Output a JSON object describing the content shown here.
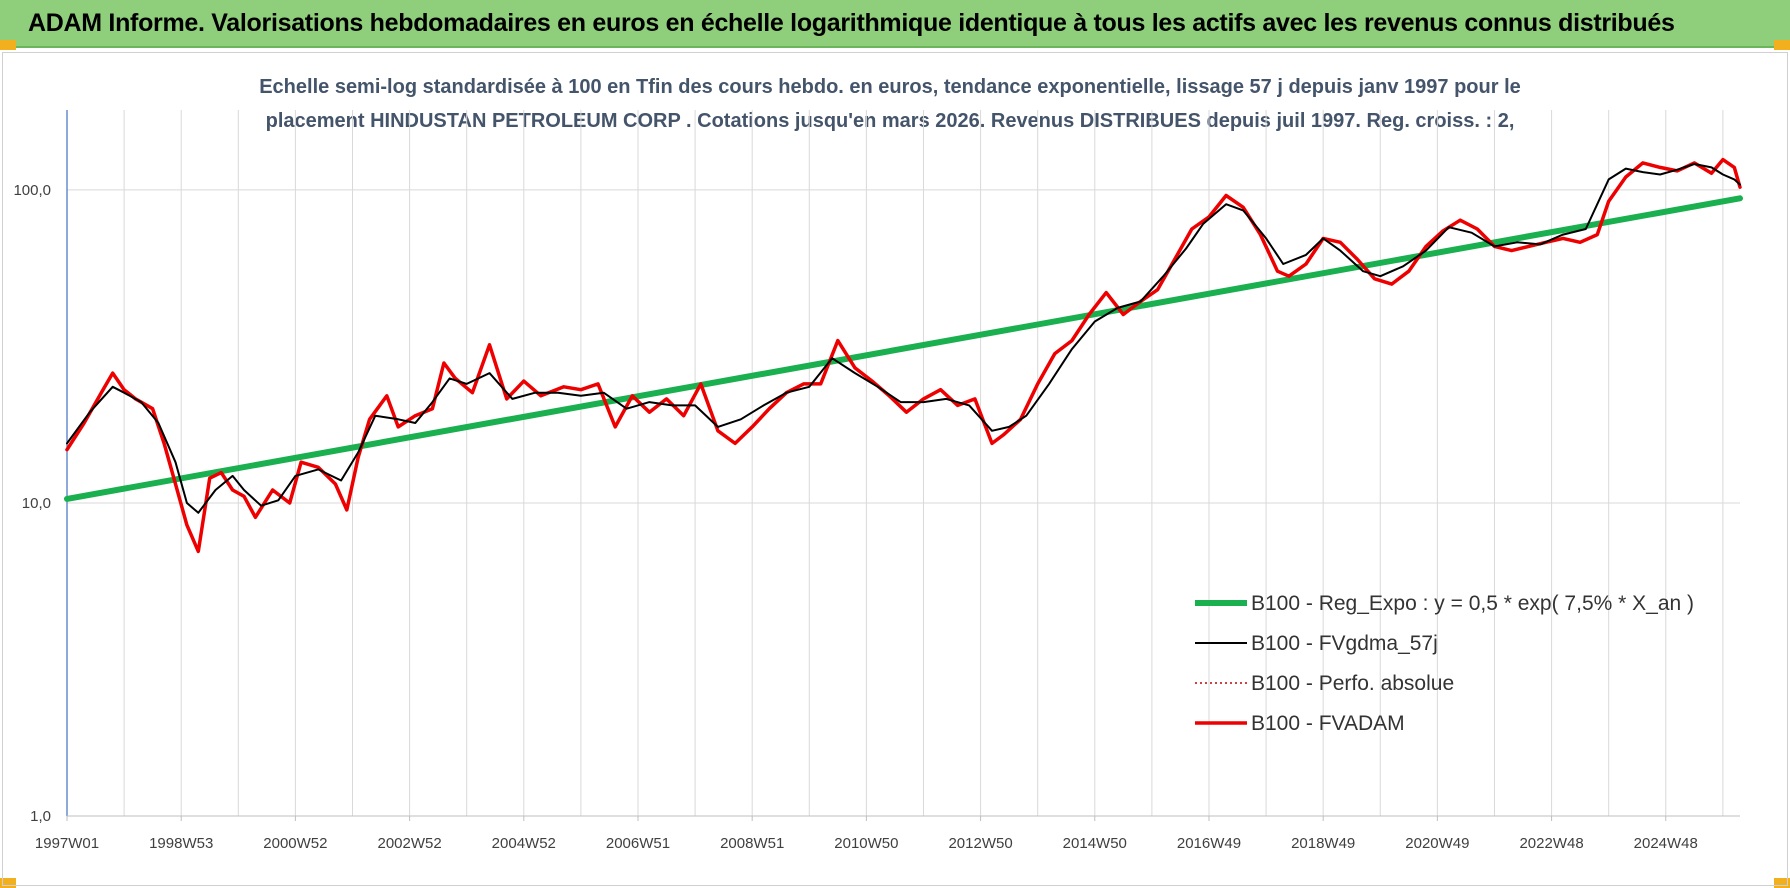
{
  "header": {
    "title": "ADAM Informe. Valorisations hebdomadaires en euros en échelle logarithmique identique à tous les actifs avec les revenus connus distribués"
  },
  "chart_data": {
    "type": "line",
    "title_lines": [
      "Echelle semi-log standardisée à 100 en Tfin des cours hebdo. en euros, tendance exponentielle, lissage 57 j depuis janv 1997 pour le",
      "placement HINDUSTAN PETROLEUM CORP . Cotations jusqu'en mars 2026. Revenus DISTRIBUES depuis juil 1997. Reg. croiss. : 2,"
    ],
    "y_scale": "log",
    "ylim": [
      1,
      180
    ],
    "xlim": [
      1997.0,
      2026.3
    ],
    "y_ticks": [
      {
        "value": 1,
        "label": "1,0"
      },
      {
        "value": 10,
        "label": "10,0"
      },
      {
        "value": 100,
        "label": "100,0"
      }
    ],
    "x_ticks": [
      {
        "value": 1997.0,
        "label": "1997W01"
      },
      {
        "value": 1999.0,
        "label": "1998W53"
      },
      {
        "value": 2001.0,
        "label": "2000W52"
      },
      {
        "value": 2003.0,
        "label": "2002W52"
      },
      {
        "value": 2005.0,
        "label": "2004W52"
      },
      {
        "value": 2007.0,
        "label": "2006W51"
      },
      {
        "value": 2009.0,
        "label": "2008W51"
      },
      {
        "value": 2011.0,
        "label": "2010W50"
      },
      {
        "value": 2013.0,
        "label": "2012W50"
      },
      {
        "value": 2015.0,
        "label": "2014W50"
      },
      {
        "value": 2017.0,
        "label": "2016W49"
      },
      {
        "value": 2019.0,
        "label": "2018W49"
      },
      {
        "value": 2021.0,
        "label": "2020W49"
      },
      {
        "value": 2023.0,
        "label": "2022W48"
      },
      {
        "value": 2025.0,
        "label": "2024W48"
      }
    ],
    "grid": "vertical and horizontal",
    "legend_position": "bottom-right",
    "colors": {
      "regression": "#1aaf4f",
      "smoothed": "#000000",
      "perf_absolue": "#c00000",
      "fvadam": "#ee0000",
      "axis": "#4472c4",
      "grid": "#d9d9d9"
    },
    "series": [
      {
        "name": "B100 - Reg_Expo : y = 0,5 * exp( 7,5% * X_an )",
        "style": "thick-solid",
        "x": [
          1997.0,
          2026.3
        ],
        "y": [
          10.3,
          94
        ]
      },
      {
        "name": "B100 - FVgdma_57j",
        "style": "thin-solid",
        "x": [
          1997.0,
          1997.4,
          1997.8,
          1998.0,
          1998.3,
          1998.6,
          1998.9,
          1999.1,
          1999.3,
          1999.6,
          1999.9,
          2000.1,
          2000.4,
          2000.7,
          2001.0,
          2001.4,
          2001.8,
          2002.1,
          2002.4,
          2002.8,
          2003.1,
          2003.4,
          2003.7,
          2004.0,
          2004.4,
          2004.8,
          2005.2,
          2005.6,
          2006.0,
          2006.4,
          2006.8,
          2007.2,
          2007.6,
          2008.0,
          2008.4,
          2008.8,
          2009.2,
          2009.6,
          2010.0,
          2010.4,
          2010.8,
          2011.2,
          2011.6,
          2012.0,
          2012.4,
          2012.8,
          2013.2,
          2013.5,
          2013.8,
          2014.2,
          2014.6,
          2015.0,
          2015.4,
          2015.8,
          2016.2,
          2016.6,
          2016.9,
          2017.3,
          2017.6,
          2018.0,
          2018.3,
          2018.7,
          2019.0,
          2019.3,
          2019.7,
          2020.0,
          2020.4,
          2020.8,
          2021.2,
          2021.6,
          2022.0,
          2022.4,
          2022.8,
          2023.2,
          2023.6,
          2024.0,
          2024.3,
          2024.6,
          2024.9,
          2025.2,
          2025.5,
          2025.8,
          2026.0,
          2026.2,
          2026.3
        ],
        "y": [
          15.5,
          19.5,
          23.5,
          22.5,
          21,
          18,
          13.5,
          10,
          9.3,
          11,
          12.2,
          11,
          9.8,
          10.2,
          12.2,
          12.8,
          11.8,
          14.5,
          19,
          18.5,
          18,
          21,
          25,
          24,
          26,
          21.5,
          22.5,
          22.5,
          22,
          22.5,
          20,
          21,
          20.5,
          20.5,
          17.5,
          18.5,
          20.5,
          22.5,
          23.5,
          29,
          26,
          23.5,
          21,
          21,
          21.5,
          20.5,
          17,
          17.5,
          19,
          24,
          31,
          38,
          42,
          44,
          53,
          65,
          78,
          90,
          86,
          70,
          58,
          62,
          70,
          64,
          55,
          53,
          57,
          64,
          76,
          73,
          66,
          68,
          67,
          72,
          75,
          108,
          117,
          114,
          112,
          116,
          121,
          118,
          112,
          108,
          104
        ]
      },
      {
        "name": "B100 - Perfo. absolue",
        "style": "dotted",
        "x": [
          1997.0,
          2026.3
        ],
        "y": [
          15.5,
          104
        ]
      },
      {
        "name": "B100 - FVADAM",
        "style": "thick-solid",
        "x": [
          1997.0,
          1997.3,
          1997.6,
          1997.8,
          1998.0,
          1998.2,
          1998.5,
          1998.7,
          1998.9,
          1999.1,
          1999.3,
          1999.5,
          1999.7,
          1999.9,
          2000.1,
          2000.3,
          2000.6,
          2000.9,
          2001.1,
          2001.4,
          2001.7,
          2001.9,
          2002.1,
          2002.3,
          2002.6,
          2002.8,
          2003.1,
          2003.4,
          2003.6,
          2003.8,
          2004.1,
          2004.4,
          2004.7,
          2005.0,
          2005.3,
          2005.7,
          2006.0,
          2006.3,
          2006.6,
          2006.9,
          2007.2,
          2007.5,
          2007.8,
          2008.1,
          2008.4,
          2008.7,
          2009.0,
          2009.3,
          2009.6,
          2009.9,
          2010.2,
          2010.5,
          2010.8,
          2011.1,
          2011.4,
          2011.7,
          2012.0,
          2012.3,
          2012.6,
          2012.9,
          2013.2,
          2013.4,
          2013.7,
          2014.0,
          2014.3,
          2014.6,
          2014.9,
          2015.2,
          2015.5,
          2015.8,
          2016.1,
          2016.4,
          2016.7,
          2017.0,
          2017.3,
          2017.6,
          2017.9,
          2018.2,
          2018.4,
          2018.7,
          2019.0,
          2019.3,
          2019.6,
          2019.9,
          2020.2,
          2020.5,
          2020.8,
          2021.1,
          2021.4,
          2021.7,
          2022.0,
          2022.3,
          2022.6,
          2022.9,
          2023.2,
          2023.5,
          2023.8,
          2024.0,
          2024.3,
          2024.6,
          2024.9,
          2025.2,
          2025.5,
          2025.8,
          2026.0,
          2026.2,
          2026.3
        ],
        "y": [
          14.8,
          18,
          22.5,
          26,
          23,
          21.5,
          20,
          15.5,
          11.5,
          8.5,
          7,
          12,
          12.5,
          11,
          10.5,
          9,
          11,
          10,
          13.5,
          13,
          11.5,
          9.5,
          14,
          18.5,
          22,
          17.5,
          19,
          20,
          28,
          25,
          22.5,
          32,
          21.5,
          24.5,
          22,
          23.5,
          23,
          24,
          17.5,
          22,
          19.5,
          21.5,
          19,
          24,
          17,
          15.5,
          17.5,
          20,
          22.5,
          24,
          24,
          33,
          27,
          24.5,
          22,
          19.5,
          21.5,
          23,
          20.5,
          21.5,
          15.5,
          16.5,
          18.5,
          24,
          30,
          33,
          40,
          47,
          40,
          44,
          48,
          60,
          75,
          82,
          96,
          88,
          72,
          55,
          53,
          58,
          70,
          68,
          60,
          52,
          50,
          55,
          66,
          74,
          80,
          75,
          66,
          64,
          66,
          68,
          70,
          68,
          72,
          92,
          110,
          122,
          118,
          115,
          122,
          113,
          125,
          118,
          102
        ]
      }
    ]
  }
}
